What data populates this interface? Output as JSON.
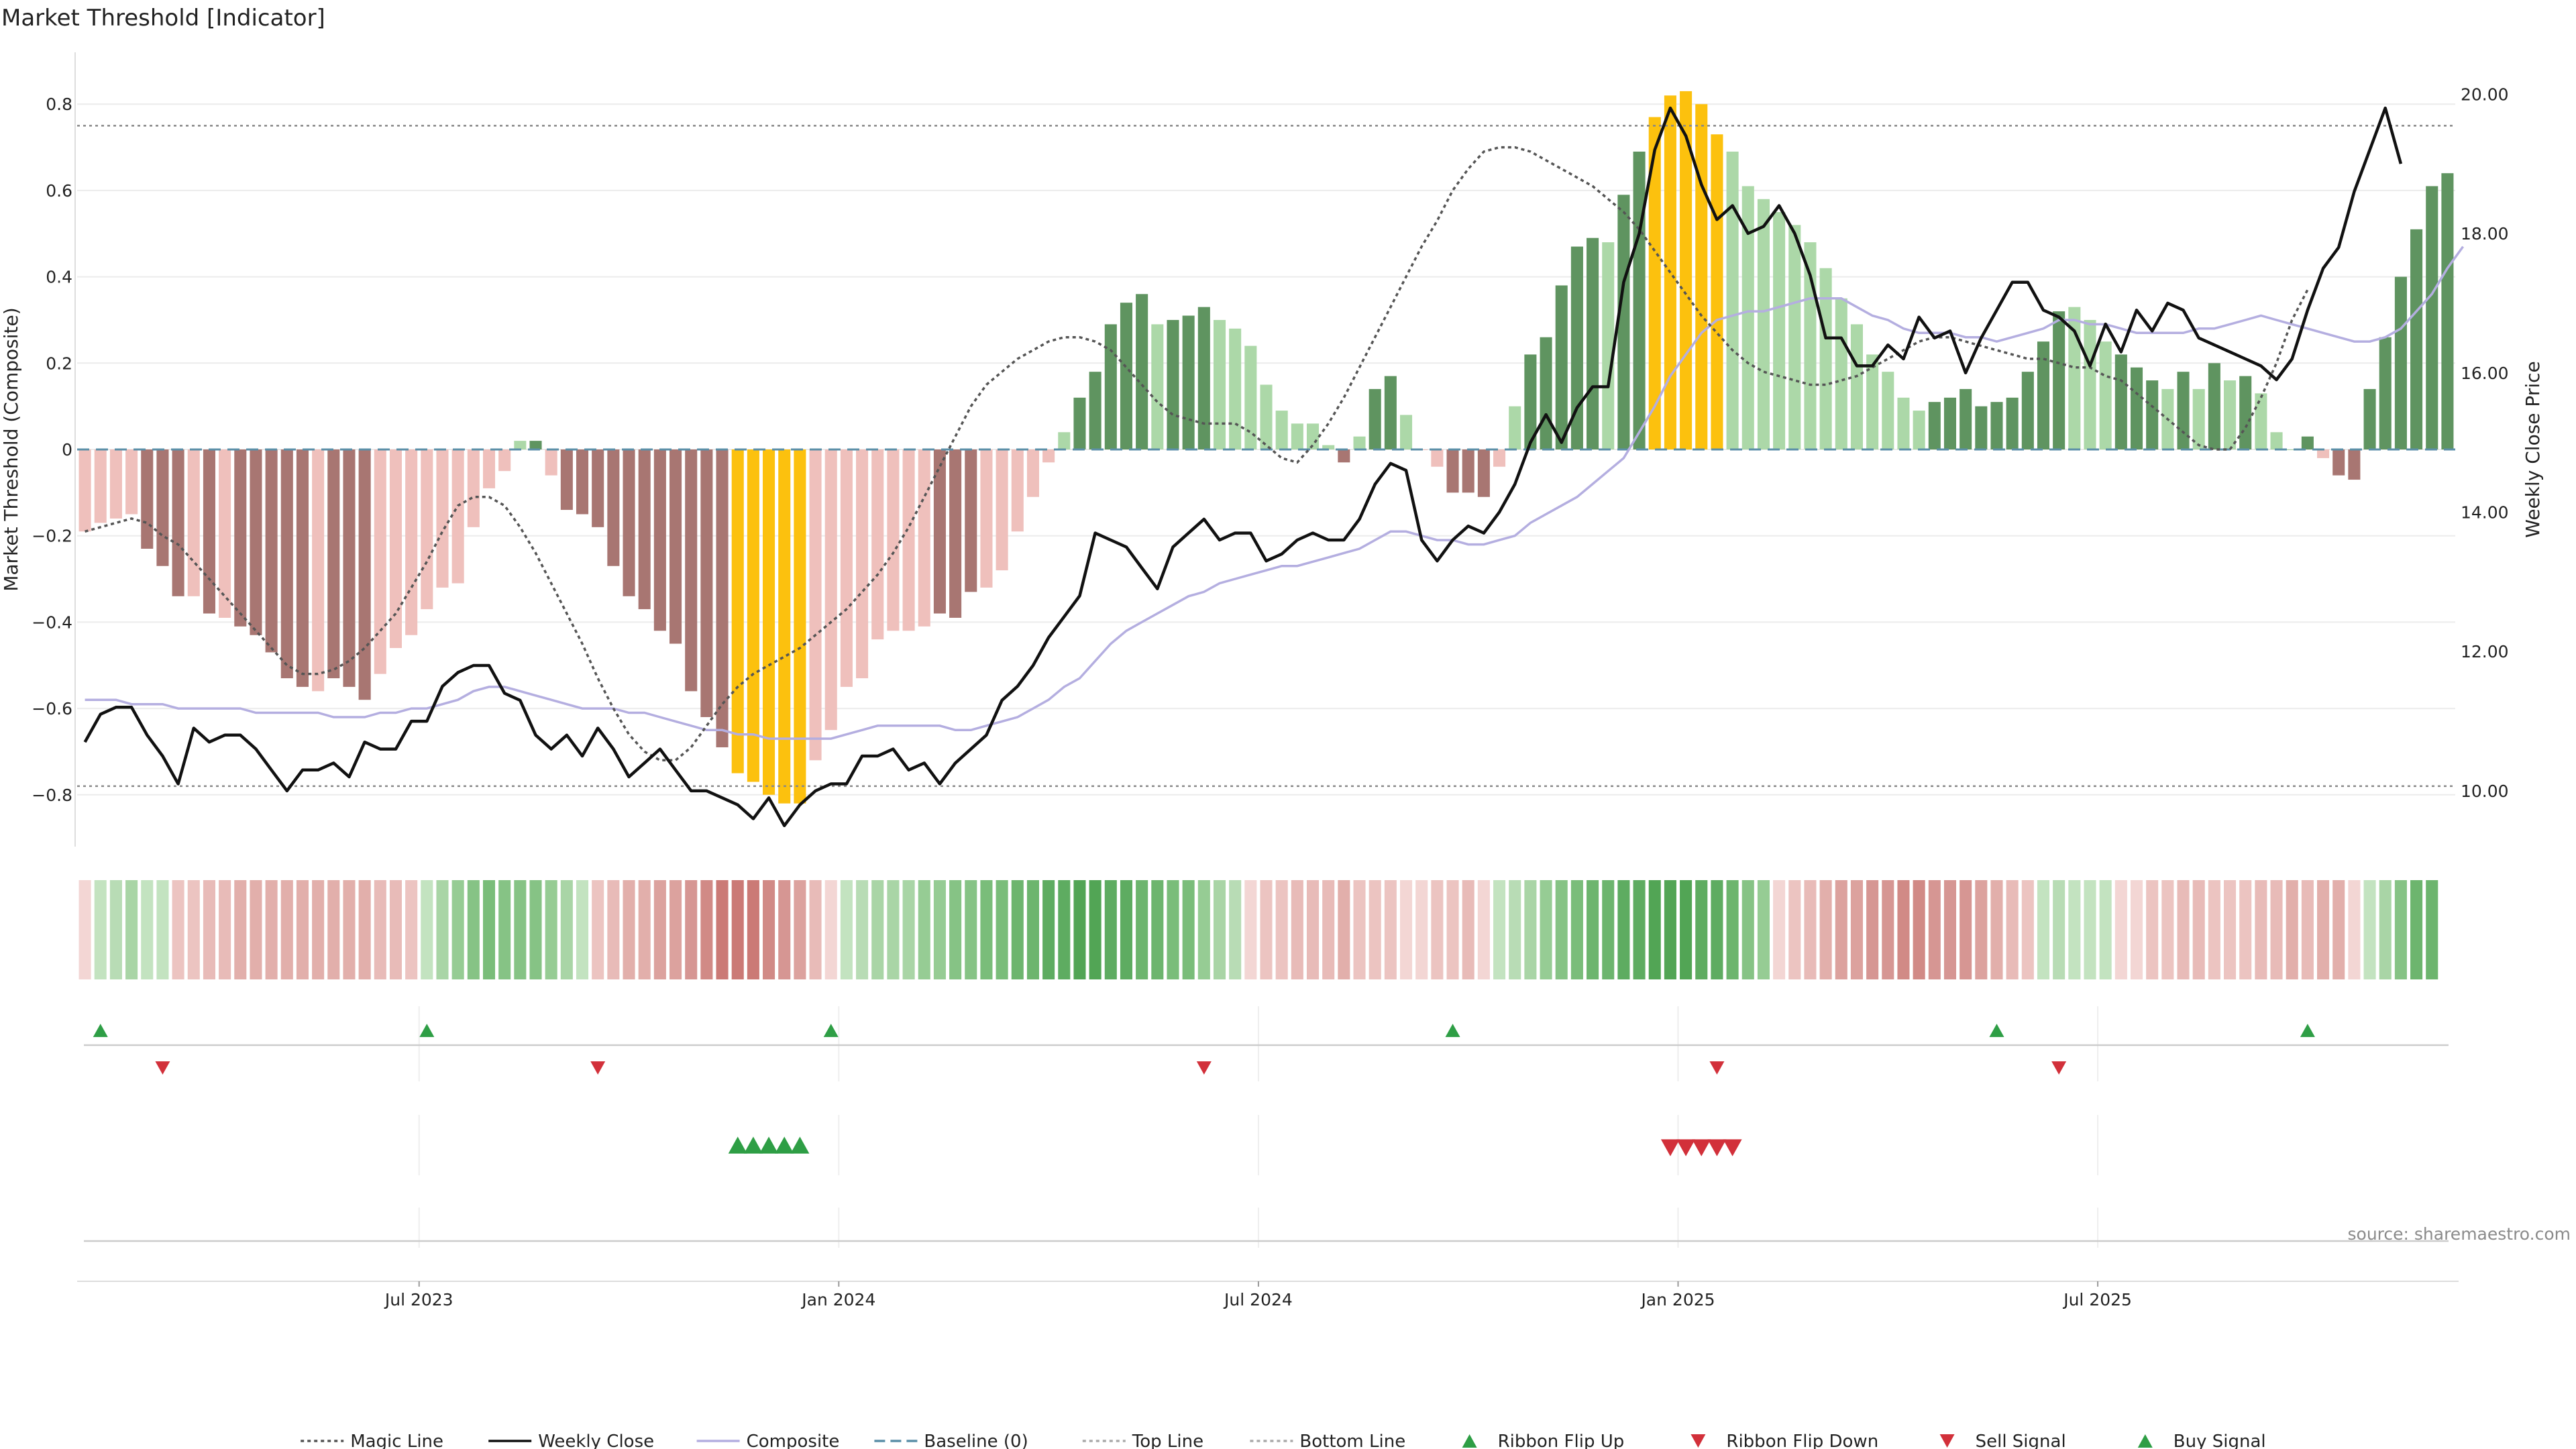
{
  "chart_data": {
    "type": "bar",
    "title": "Market Threshold [Indicator]",
    "ylabel": "Market Threshold (Composite)",
    "y2label": "Weekly Close Price",
    "ylim": [
      -0.92,
      0.92
    ],
    "y2lim": [
      9.2,
      20.6
    ],
    "yticks": [
      0.8,
      0.6,
      0.4,
      0.2,
      0,
      -0.2,
      -0.4,
      -0.6,
      -0.8
    ],
    "ytick_labels": [
      "0.8",
      "0.6",
      "0.4",
      "0.2",
      "0",
      "−0.2",
      "−0.4",
      "−0.6",
      "−0.8"
    ],
    "y2ticks": [
      20,
      18,
      16,
      14,
      12,
      10
    ],
    "y2tick_labels": [
      "20.00",
      "18.00",
      "16.00",
      "14.00",
      "12.00",
      "10.00"
    ],
    "xticks": [
      22,
      49,
      76,
      103,
      130
    ],
    "xtick_labels": [
      "Jul 2023",
      "Jan 2024",
      "Jul 2024",
      "Jan 2025",
      "Jul 2025"
    ],
    "top_line": 0.75,
    "bottom_line": -0.78,
    "baseline": 0,
    "bars": [
      -0.19,
      -0.17,
      -0.16,
      -0.15,
      -0.23,
      -0.27,
      -0.34,
      -0.34,
      -0.38,
      -0.39,
      -0.41,
      -0.43,
      -0.47,
      -0.53,
      -0.55,
      -0.56,
      -0.53,
      -0.55,
      -0.58,
      -0.52,
      -0.46,
      -0.43,
      -0.37,
      -0.32,
      -0.31,
      -0.18,
      -0.09,
      -0.05,
      0.02,
      0.02,
      -0.06,
      -0.14,
      -0.15,
      -0.18,
      -0.27,
      -0.34,
      -0.37,
      -0.42,
      -0.45,
      -0.56,
      -0.62,
      -0.69,
      -0.75,
      -0.77,
      -0.8,
      -0.82,
      -0.82,
      -0.72,
      -0.65,
      -0.55,
      -0.53,
      -0.44,
      -0.42,
      -0.42,
      -0.41,
      -0.38,
      -0.39,
      -0.33,
      -0.32,
      -0.28,
      -0.19,
      -0.11,
      -0.03,
      0.04,
      0.12,
      0.18,
      0.29,
      0.34,
      0.36,
      0.29,
      0.3,
      0.31,
      0.33,
      0.3,
      0.28,
      0.24,
      0.15,
      0.09,
      0.06,
      0.06,
      0.01,
      -0.03,
      0.03,
      0.14,
      0.17,
      0.08,
      0.0,
      -0.04,
      -0.1,
      -0.1,
      -0.11,
      -0.04,
      0.1,
      0.22,
      0.26,
      0.38,
      0.47,
      0.49,
      0.48,
      0.59,
      0.69,
      0.77,
      0.82,
      0.83,
      0.8,
      0.73,
      0.69,
      0.61,
      0.58,
      0.55,
      0.52,
      0.48,
      0.42,
      0.35,
      0.29,
      0.22,
      0.18,
      0.12,
      0.09,
      0.11,
      0.12,
      0.14,
      0.1,
      0.11,
      0.12,
      0.18,
      0.25,
      0.32,
      0.33,
      0.3,
      0.25,
      0.22,
      0.19,
      0.16,
      0.14,
      0.18,
      0.14,
      0.2,
      0.16,
      0.17,
      0.13,
      0.04,
      0.0,
      0.03,
      -0.02,
      -0.06,
      -0.07,
      0.14,
      0.26,
      0.4,
      0.51,
      0.61,
      0.64
    ],
    "bar_colors": {
      "strong_negative": "#a87672",
      "weak_negative": "#efc0bc",
      "strong_positive": "#5f9460",
      "weak_positive": "#acd8a8",
      "extreme": "#fcc10e"
    },
    "bar_classes": [
      "wn",
      "wn",
      "wn",
      "wn",
      "sn",
      "sn",
      "sn",
      "wn",
      "sn",
      "wn",
      "sn",
      "sn",
      "sn",
      "sn",
      "sn",
      "wn",
      "sn",
      "sn",
      "sn",
      "wn",
      "wn",
      "wn",
      "wn",
      "wn",
      "wn",
      "wn",
      "wn",
      "wn",
      "wp",
      "sp",
      "wn",
      "sn",
      "sn",
      "sn",
      "sn",
      "sn",
      "sn",
      "sn",
      "sn",
      "sn",
      "sn",
      "sn",
      "ex",
      "ex",
      "ex",
      "ex",
      "ex",
      "wn",
      "wn",
      "wn",
      "wn",
      "wn",
      "wn",
      "wn",
      "wn",
      "sn",
      "sn",
      "sn",
      "wn",
      "wn",
      "wn",
      "wn",
      "wn",
      "wp",
      "sp",
      "sp",
      "sp",
      "sp",
      "sp",
      "wp",
      "sp",
      "sp",
      "sp",
      "wp",
      "wp",
      "wp",
      "wp",
      "wp",
      "wp",
      "wp",
      "wp",
      "sn",
      "wp",
      "sp",
      "sp",
      "wp",
      "wn",
      "wn",
      "sn",
      "sn",
      "sn",
      "wn",
      "wp",
      "sp",
      "sp",
      "sp",
      "sp",
      "sp",
      "wp",
      "sp",
      "sp",
      "ex",
      "ex",
      "ex",
      "ex",
      "ex",
      "wp",
      "wp",
      "wp",
      "wp",
      "wp",
      "wp",
      "wp",
      "wp",
      "wp",
      "wp",
      "wp",
      "wp",
      "wp",
      "sp",
      "sp",
      "sp",
      "sp",
      "sp",
      "sp",
      "sp",
      "sp",
      "sp",
      "wp",
      "wp",
      "wp",
      "sp",
      "sp",
      "sp",
      "wp",
      "sp",
      "wp",
      "sp",
      "wp",
      "sp",
      "wp",
      "wp",
      "wp",
      "sp",
      "wn",
      "sn",
      "sn",
      "sp",
      "sp",
      "sp",
      "sp",
      "sp",
      "sp"
    ],
    "weekly_close": [
      10.7,
      11.1,
      11.2,
      11.2,
      10.8,
      10.5,
      10.1,
      10.9,
      10.7,
      10.8,
      10.8,
      10.6,
      10.3,
      10.0,
      10.3,
      10.3,
      10.4,
      10.2,
      10.7,
      10.6,
      10.6,
      11.0,
      11.0,
      11.5,
      11.7,
      11.8,
      11.8,
      11.4,
      11.3,
      10.8,
      10.6,
      10.8,
      10.5,
      10.9,
      10.6,
      10.2,
      10.4,
      10.6,
      10.3,
      10.0,
      10.0,
      9.9,
      9.8,
      9.6,
      9.9,
      9.5,
      9.8,
      10.0,
      10.1,
      10.1,
      10.5,
      10.5,
      10.6,
      10.3,
      10.4,
      10.1,
      10.4,
      10.6,
      10.8,
      11.3,
      11.5,
      11.8,
      12.2,
      12.5,
      12.8,
      13.7,
      13.6,
      13.5,
      13.2,
      12.9,
      13.5,
      13.7,
      13.9,
      13.6,
      13.7,
      13.7,
      13.3,
      13.4,
      13.6,
      13.7,
      13.6,
      13.6,
      13.9,
      14.4,
      14.7,
      14.6,
      13.6,
      13.3,
      13.6,
      13.8,
      13.7,
      14.0,
      14.4,
      15.0,
      15.4,
      15.0,
      15.5,
      15.8,
      15.8,
      17.3,
      18.0,
      19.2,
      19.8,
      19.4,
      18.7,
      18.2,
      18.4,
      18.0,
      18.1,
      18.4,
      18.0,
      17.4,
      16.5,
      16.5,
      16.1,
      16.1,
      16.4,
      16.2,
      16.8,
      16.5,
      16.6,
      16.0,
      16.5,
      16.9,
      17.3,
      17.3,
      16.9,
      16.8,
      16.6,
      16.1,
      16.7,
      16.3,
      16.9,
      16.6,
      17.0,
      16.9,
      16.5,
      16.4,
      16.3,
      16.2,
      16.1,
      15.9,
      16.2,
      16.9,
      17.5,
      17.8,
      18.6,
      19.2,
      19.8,
      19.0
    ],
    "composite": [
      -0.58,
      -0.58,
      -0.58,
      -0.59,
      -0.59,
      -0.59,
      -0.6,
      -0.6,
      -0.6,
      -0.6,
      -0.6,
      -0.61,
      -0.61,
      -0.61,
      -0.61,
      -0.61,
      -0.62,
      -0.62,
      -0.62,
      -0.61,
      -0.61,
      -0.6,
      -0.6,
      -0.59,
      -0.58,
      -0.56,
      -0.55,
      -0.55,
      -0.56,
      -0.57,
      -0.58,
      -0.59,
      -0.6,
      -0.6,
      -0.6,
      -0.61,
      -0.61,
      -0.62,
      -0.63,
      -0.64,
      -0.65,
      -0.65,
      -0.66,
      -0.66,
      -0.67,
      -0.67,
      -0.67,
      -0.67,
      -0.67,
      -0.66,
      -0.65,
      -0.64,
      -0.64,
      -0.64,
      -0.64,
      -0.64,
      -0.65,
      -0.65,
      -0.64,
      -0.63,
      -0.62,
      -0.6,
      -0.58,
      -0.55,
      -0.53,
      -0.49,
      -0.45,
      -0.42,
      -0.4,
      -0.38,
      -0.36,
      -0.34,
      -0.33,
      -0.31,
      -0.3,
      -0.29,
      -0.28,
      -0.27,
      -0.27,
      -0.26,
      -0.25,
      -0.24,
      -0.23,
      -0.21,
      -0.19,
      -0.19,
      -0.2,
      -0.21,
      -0.21,
      -0.22,
      -0.22,
      -0.21,
      -0.2,
      -0.17,
      -0.15,
      -0.13,
      -0.11,
      -0.08,
      -0.05,
      -0.02,
      0.04,
      0.1,
      0.17,
      0.22,
      0.27,
      0.3,
      0.31,
      0.32,
      0.32,
      0.33,
      0.34,
      0.35,
      0.35,
      0.35,
      0.33,
      0.31,
      0.3,
      0.28,
      0.27,
      0.27,
      0.27,
      0.26,
      0.26,
      0.25,
      0.26,
      0.27,
      0.28,
      0.3,
      0.3,
      0.29,
      0.29,
      0.28,
      0.27,
      0.27,
      0.27,
      0.27,
      0.28,
      0.28,
      0.29,
      0.3,
      0.31,
      0.3,
      0.29,
      0.28,
      0.27,
      0.26,
      0.25,
      0.25,
      0.26,
      0.28,
      0.32,
      0.36,
      0.42,
      0.47
    ],
    "magic_line": [
      -0.19,
      -0.18,
      -0.17,
      -0.16,
      -0.17,
      -0.2,
      -0.22,
      -0.26,
      -0.3,
      -0.34,
      -0.38,
      -0.42,
      -0.46,
      -0.5,
      -0.52,
      -0.52,
      -0.51,
      -0.49,
      -0.46,
      -0.42,
      -0.38,
      -0.32,
      -0.26,
      -0.19,
      -0.13,
      -0.11,
      -0.11,
      -0.13,
      -0.18,
      -0.24,
      -0.31,
      -0.38,
      -0.45,
      -0.53,
      -0.6,
      -0.66,
      -0.7,
      -0.72,
      -0.72,
      -0.69,
      -0.64,
      -0.59,
      -0.55,
      -0.52,
      -0.5,
      -0.48,
      -0.46,
      -0.43,
      -0.4,
      -0.37,
      -0.33,
      -0.29,
      -0.24,
      -0.18,
      -0.11,
      -0.04,
      0.03,
      0.1,
      0.15,
      0.18,
      0.21,
      0.23,
      0.25,
      0.26,
      0.26,
      0.25,
      0.23,
      0.19,
      0.15,
      0.11,
      0.08,
      0.07,
      0.06,
      0.06,
      0.06,
      0.04,
      0.01,
      -0.02,
      -0.03,
      0.01,
      0.06,
      0.12,
      0.19,
      0.26,
      0.33,
      0.4,
      0.47,
      0.53,
      0.6,
      0.65,
      0.69,
      0.7,
      0.7,
      0.69,
      0.67,
      0.65,
      0.63,
      0.61,
      0.58,
      0.55,
      0.51,
      0.46,
      0.41,
      0.36,
      0.31,
      0.27,
      0.23,
      0.2,
      0.18,
      0.17,
      0.16,
      0.15,
      0.15,
      0.16,
      0.17,
      0.19,
      0.21,
      0.23,
      0.25,
      0.26,
      0.26,
      0.25,
      0.24,
      0.23,
      0.22,
      0.21,
      0.21,
      0.2,
      0.19,
      0.19,
      0.17,
      0.16,
      0.13,
      0.1,
      0.07,
      0.04,
      0.01,
      0.0,
      0.0,
      0.05,
      0.12,
      0.2,
      0.3,
      0.37
    ],
    "ribbon_colors": [
      "#f3d6d4",
      "#c3e3c0",
      "#b8dcb5",
      "#a9d5a6",
      "#c3e3c0",
      "#c3e3c0",
      "#ecc4c1",
      "#ecc4c1",
      "#e8bbb8",
      "#e8bbb8",
      "#e2afab",
      "#e2afab",
      "#e2afab",
      "#e2afab",
      "#e2afab",
      "#e2afab",
      "#e2afab",
      "#e2afab",
      "#e2afab",
      "#e8bbb8",
      "#e8bbb8",
      "#ecc4c1",
      "#c3e3c0",
      "#a9d5a6",
      "#96cc94",
      "#86c385",
      "#7abd7a",
      "#86c385",
      "#86c385",
      "#86c385",
      "#96cc94",
      "#a9d5a6",
      "#c3e3c0",
      "#ecc4c1",
      "#e8bbb8",
      "#e2afab",
      "#e2afab",
      "#dca29e",
      "#dca29e",
      "#d69693",
      "#d18a86",
      "#cb7a76",
      "#cb7a76",
      "#cb7a76",
      "#d18a86",
      "#d69693",
      "#dca29e",
      "#e8bbb8",
      "#f3d6d4",
      "#c3e3c0",
      "#b8dcb5",
      "#a9d5a6",
      "#a9d5a6",
      "#a9d5a6",
      "#96cc94",
      "#96cc94",
      "#86c385",
      "#86c385",
      "#7abd7a",
      "#7abd7a",
      "#6db56e",
      "#6db56e",
      "#5eac61",
      "#5eac61",
      "#52a555",
      "#52a555",
      "#5eac61",
      "#5eac61",
      "#6db56e",
      "#6db56e",
      "#7abd7a",
      "#7abd7a",
      "#96cc94",
      "#a9d5a6",
      "#b8dcb5",
      "#f3d6d4",
      "#ecc4c1",
      "#ecc4c1",
      "#e8bbb8",
      "#e8bbb8",
      "#e8bbb8",
      "#e2afab",
      "#ecc4c1",
      "#ecc4c1",
      "#ecc4c1",
      "#f3d6d4",
      "#f3d6d4",
      "#ecc4c1",
      "#ecc4c1",
      "#e8bbb8",
      "#f3d6d4",
      "#c3e3c0",
      "#b8dcb5",
      "#a9d5a6",
      "#96cc94",
      "#86c385",
      "#7abd7a",
      "#6db56e",
      "#6db56e",
      "#5eac61",
      "#5eac61",
      "#52a555",
      "#52a555",
      "#52a555",
      "#5eac61",
      "#5eac61",
      "#6db56e",
      "#86c385",
      "#96cc94",
      "#f3d6d4",
      "#ecc4c1",
      "#e8bbb8",
      "#e2afab",
      "#dca29e",
      "#dca29e",
      "#d69693",
      "#d69693",
      "#d18a86",
      "#d18a86",
      "#d69693",
      "#d69693",
      "#d69693",
      "#dca29e",
      "#e2afab",
      "#e8bbb8",
      "#ecc4c1",
      "#c3e3c0",
      "#b8dcb5",
      "#c3e3c0",
      "#c3e3c0",
      "#c3e3c0",
      "#f3d6d4",
      "#f3d6d4",
      "#ecc4c1",
      "#ecc4c1",
      "#e8bbb8",
      "#e8bbb8",
      "#ecc4c1",
      "#ecc4c1",
      "#ecc4c1",
      "#e8bbb8",
      "#e8bbb8",
      "#e2afab",
      "#e8bbb8",
      "#e2afab",
      "#e2afab",
      "#f3d6d4",
      "#c3e3c0",
      "#a9d5a6",
      "#86c385",
      "#6db56e",
      "#6db56e"
    ],
    "ribbon_flip_up": [
      1,
      22,
      48,
      88,
      123,
      143
    ],
    "ribbon_flip_down": [
      5,
      33,
      72,
      105,
      127
    ],
    "buy_signal": [
      42,
      43,
      44,
      45,
      46
    ],
    "sell_signal": [
      102,
      103,
      104,
      105,
      106
    ],
    "colors": {
      "magic_line": "#555555",
      "weekly_close": "#111111",
      "composite": "#b4aee0",
      "baseline": "#5b8fa8",
      "guide": "#888888",
      "up": "#2e9e45",
      "down": "#d2303a",
      "grid": "#ececec"
    },
    "source": "source: sharemaestro.com",
    "legend_position": "bottom-center",
    "legend": [
      {
        "label": "Magic Line",
        "style": "dotted-line",
        "color": "#555555"
      },
      {
        "label": "Weekly Close",
        "style": "solid-line",
        "color": "#111111"
      },
      {
        "label": "Composite",
        "style": "solid-line",
        "color": "#b4aee0"
      },
      {
        "label": "Baseline (0)",
        "style": "dashed-line",
        "color": "#5b8fa8"
      },
      {
        "label": "Top Line",
        "style": "dotted-line",
        "color": "#aaaaaa"
      },
      {
        "label": "Bottom Line",
        "style": "dotted-line",
        "color": "#aaaaaa"
      },
      {
        "label": "Ribbon Flip Up",
        "style": "triangle-up",
        "color": "#2e9e45"
      },
      {
        "label": "Ribbon Flip Down",
        "style": "triangle-down",
        "color": "#d2303a"
      },
      {
        "label": "Sell Signal",
        "style": "triangle-down",
        "color": "#d2303a"
      },
      {
        "label": "Buy Signal",
        "style": "triangle-up",
        "color": "#2e9e45"
      }
    ]
  }
}
